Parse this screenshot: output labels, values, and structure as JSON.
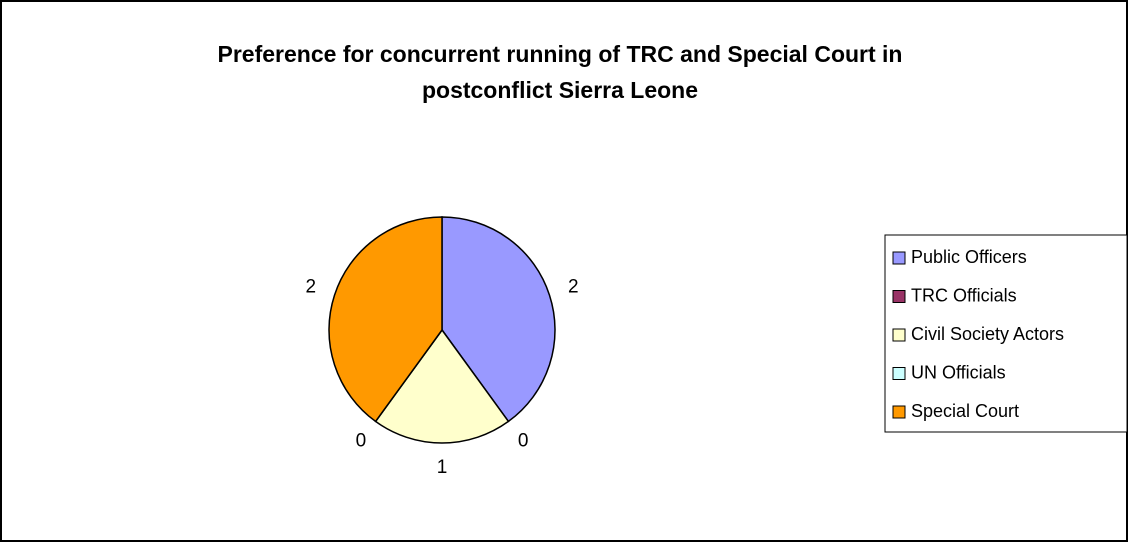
{
  "chart_data": {
    "type": "pie",
    "title": [
      "Preference for concurrent running of TRC and Special Court in",
      "postconflict Sierra Leone"
    ],
    "categories": [
      "Public Officers",
      "TRC Officials",
      "Civil Society Actors",
      "UN Officials",
      "Special Court"
    ],
    "values": [
      2,
      0,
      1,
      0,
      2
    ],
    "colors": [
      "#9999ff",
      "#993366",
      "#ffffcc",
      "#ccffff",
      "#ff9900"
    ],
    "legend": "right"
  }
}
